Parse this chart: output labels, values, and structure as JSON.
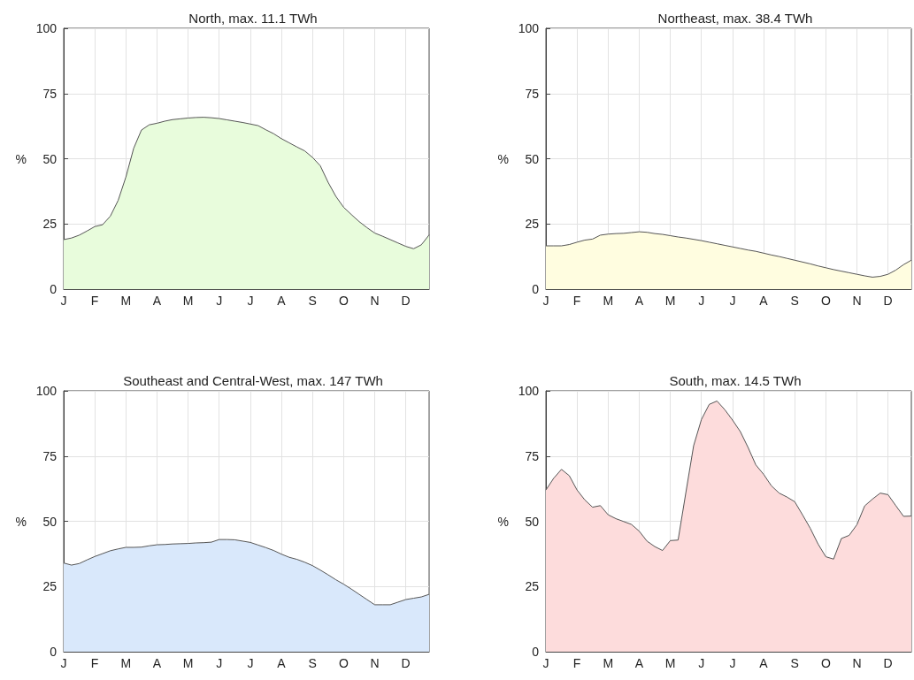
{
  "chart_data": [
    {
      "type": "area",
      "title": "North, max. 11.1 TWh",
      "ylabel": "%",
      "color": "#e8fcdc",
      "grid": true,
      "ylim": [
        0,
        100
      ],
      "yticks": [
        0,
        25,
        50,
        75,
        100
      ],
      "categories": [
        "J",
        null,
        null,
        null,
        "F",
        null,
        null,
        null,
        "M",
        null,
        null,
        null,
        "A",
        null,
        null,
        null,
        "M",
        null,
        null,
        null,
        "J",
        null,
        null,
        null,
        "J",
        null,
        null,
        null,
        "A",
        null,
        null,
        null,
        "S",
        null,
        null,
        null,
        "O",
        null,
        null,
        null,
        "N",
        null,
        null,
        null,
        "D",
        null,
        null,
        null
      ],
      "values": [
        19,
        19.6,
        20.7,
        22.3,
        24,
        24.7,
        28,
        34,
        43,
        54,
        61,
        63,
        63.6,
        64.4,
        65,
        65.3,
        65.6,
        65.8,
        65.9,
        65.7,
        65.4,
        64.9,
        64.4,
        63.9,
        63.3,
        62.7,
        61.1,
        59.6,
        57.7,
        56.1,
        54.5,
        53,
        50.5,
        47.3,
        41,
        35.6,
        31.4,
        28.6,
        25.9,
        23.6,
        21.5,
        20.3,
        19,
        17.7,
        16.4,
        15.5,
        17,
        20.8
      ]
    },
    {
      "type": "area",
      "title": "Northeast, max. 38.4 TWh",
      "ylabel": "%",
      "color": "#fffde0",
      "grid": true,
      "ylim": [
        0,
        100
      ],
      "yticks": [
        0,
        25,
        50,
        75,
        100
      ],
      "categories": [
        "J",
        null,
        null,
        null,
        "F",
        null,
        null,
        null,
        "M",
        null,
        null,
        null,
        "A",
        null,
        null,
        null,
        "M",
        null,
        null,
        null,
        "J",
        null,
        null,
        null,
        "J",
        null,
        null,
        null,
        "A",
        null,
        null,
        null,
        "S",
        null,
        null,
        null,
        "O",
        null,
        null,
        null,
        "N",
        null,
        null,
        null,
        "D",
        null,
        null,
        null
      ],
      "values": [
        16.6,
        16.6,
        16.6,
        17.1,
        18,
        18.8,
        19.2,
        20.7,
        21.1,
        21.3,
        21.4,
        21.7,
        22,
        21.8,
        21.3,
        21,
        20.5,
        20,
        19.6,
        19.1,
        18.6,
        18,
        17.4,
        16.8,
        16.2,
        15.6,
        15,
        14.5,
        13.8,
        13.1,
        12.5,
        11.8,
        11.1,
        10.4,
        9.7,
        8.9,
        8.2,
        7.5,
        6.9,
        6.3,
        5.7,
        5.1,
        4.6,
        4.9,
        5.7,
        7.3,
        9.4,
        11.1
      ]
    },
    {
      "type": "area",
      "title": "Southeast and Central-West, max. 147 TWh",
      "ylabel": "%",
      "color": "#d9e8fb",
      "grid": true,
      "ylim": [
        0,
        100
      ],
      "yticks": [
        0,
        25,
        50,
        75,
        100
      ],
      "categories": [
        "J",
        null,
        null,
        null,
        "F",
        null,
        null,
        null,
        "M",
        null,
        null,
        null,
        "A",
        null,
        null,
        null,
        "M",
        null,
        null,
        null,
        "J",
        null,
        null,
        null,
        "J",
        null,
        null,
        null,
        "A",
        null,
        null,
        null,
        "S",
        null,
        null,
        null,
        "O",
        null,
        null,
        null,
        "N",
        null,
        null,
        null,
        "D",
        null,
        null,
        null
      ],
      "values": [
        34,
        33.2,
        33.8,
        35.2,
        36.5,
        37.6,
        38.7,
        39.4,
        40,
        40,
        40.1,
        40.6,
        41,
        41.1,
        41.3,
        41.4,
        41.5,
        41.7,
        41.8,
        42,
        43,
        43,
        42.9,
        42.4,
        41.9,
        40.9,
        39.9,
        38.8,
        37.4,
        36.2,
        35.4,
        34.3,
        33,
        31.3,
        29.5,
        27.6,
        25.9,
        24,
        22,
        20,
        18,
        18,
        18,
        19,
        20,
        20.5,
        21,
        22
      ]
    },
    {
      "type": "area",
      "title": "South, max. 14.5 TWh",
      "ylabel": "%",
      "color": "#fddcdc",
      "grid": true,
      "ylim": [
        0,
        100
      ],
      "yticks": [
        0,
        25,
        50,
        75,
        100
      ],
      "categories": [
        "J",
        null,
        null,
        null,
        "F",
        null,
        null,
        null,
        "M",
        null,
        null,
        null,
        "A",
        null,
        null,
        null,
        "M",
        null,
        null,
        null,
        "J",
        null,
        null,
        null,
        "J",
        null,
        null,
        null,
        "A",
        null,
        null,
        null,
        "S",
        null,
        null,
        null,
        "O",
        null,
        null,
        null,
        "N",
        null,
        null,
        null,
        "D",
        null,
        null,
        null
      ],
      "values": [
        62,
        66.5,
        69.9,
        67.5,
        62,
        58.2,
        55.4,
        56,
        52.5,
        51,
        49.9,
        48.8,
        46.2,
        42.4,
        40.3,
        38.8,
        42.6,
        42.8,
        61,
        79,
        89,
        94.8,
        96.1,
        92.8,
        88.8,
        84.4,
        78.3,
        71.6,
        68,
        63.6,
        60.8,
        59.3,
        57.5,
        52.5,
        47.3,
        41.3,
        36.4,
        35.5,
        43.4,
        44.6,
        48.7,
        55.9,
        58.5,
        60.8,
        60.2,
        56,
        51.9,
        52
      ]
    }
  ]
}
